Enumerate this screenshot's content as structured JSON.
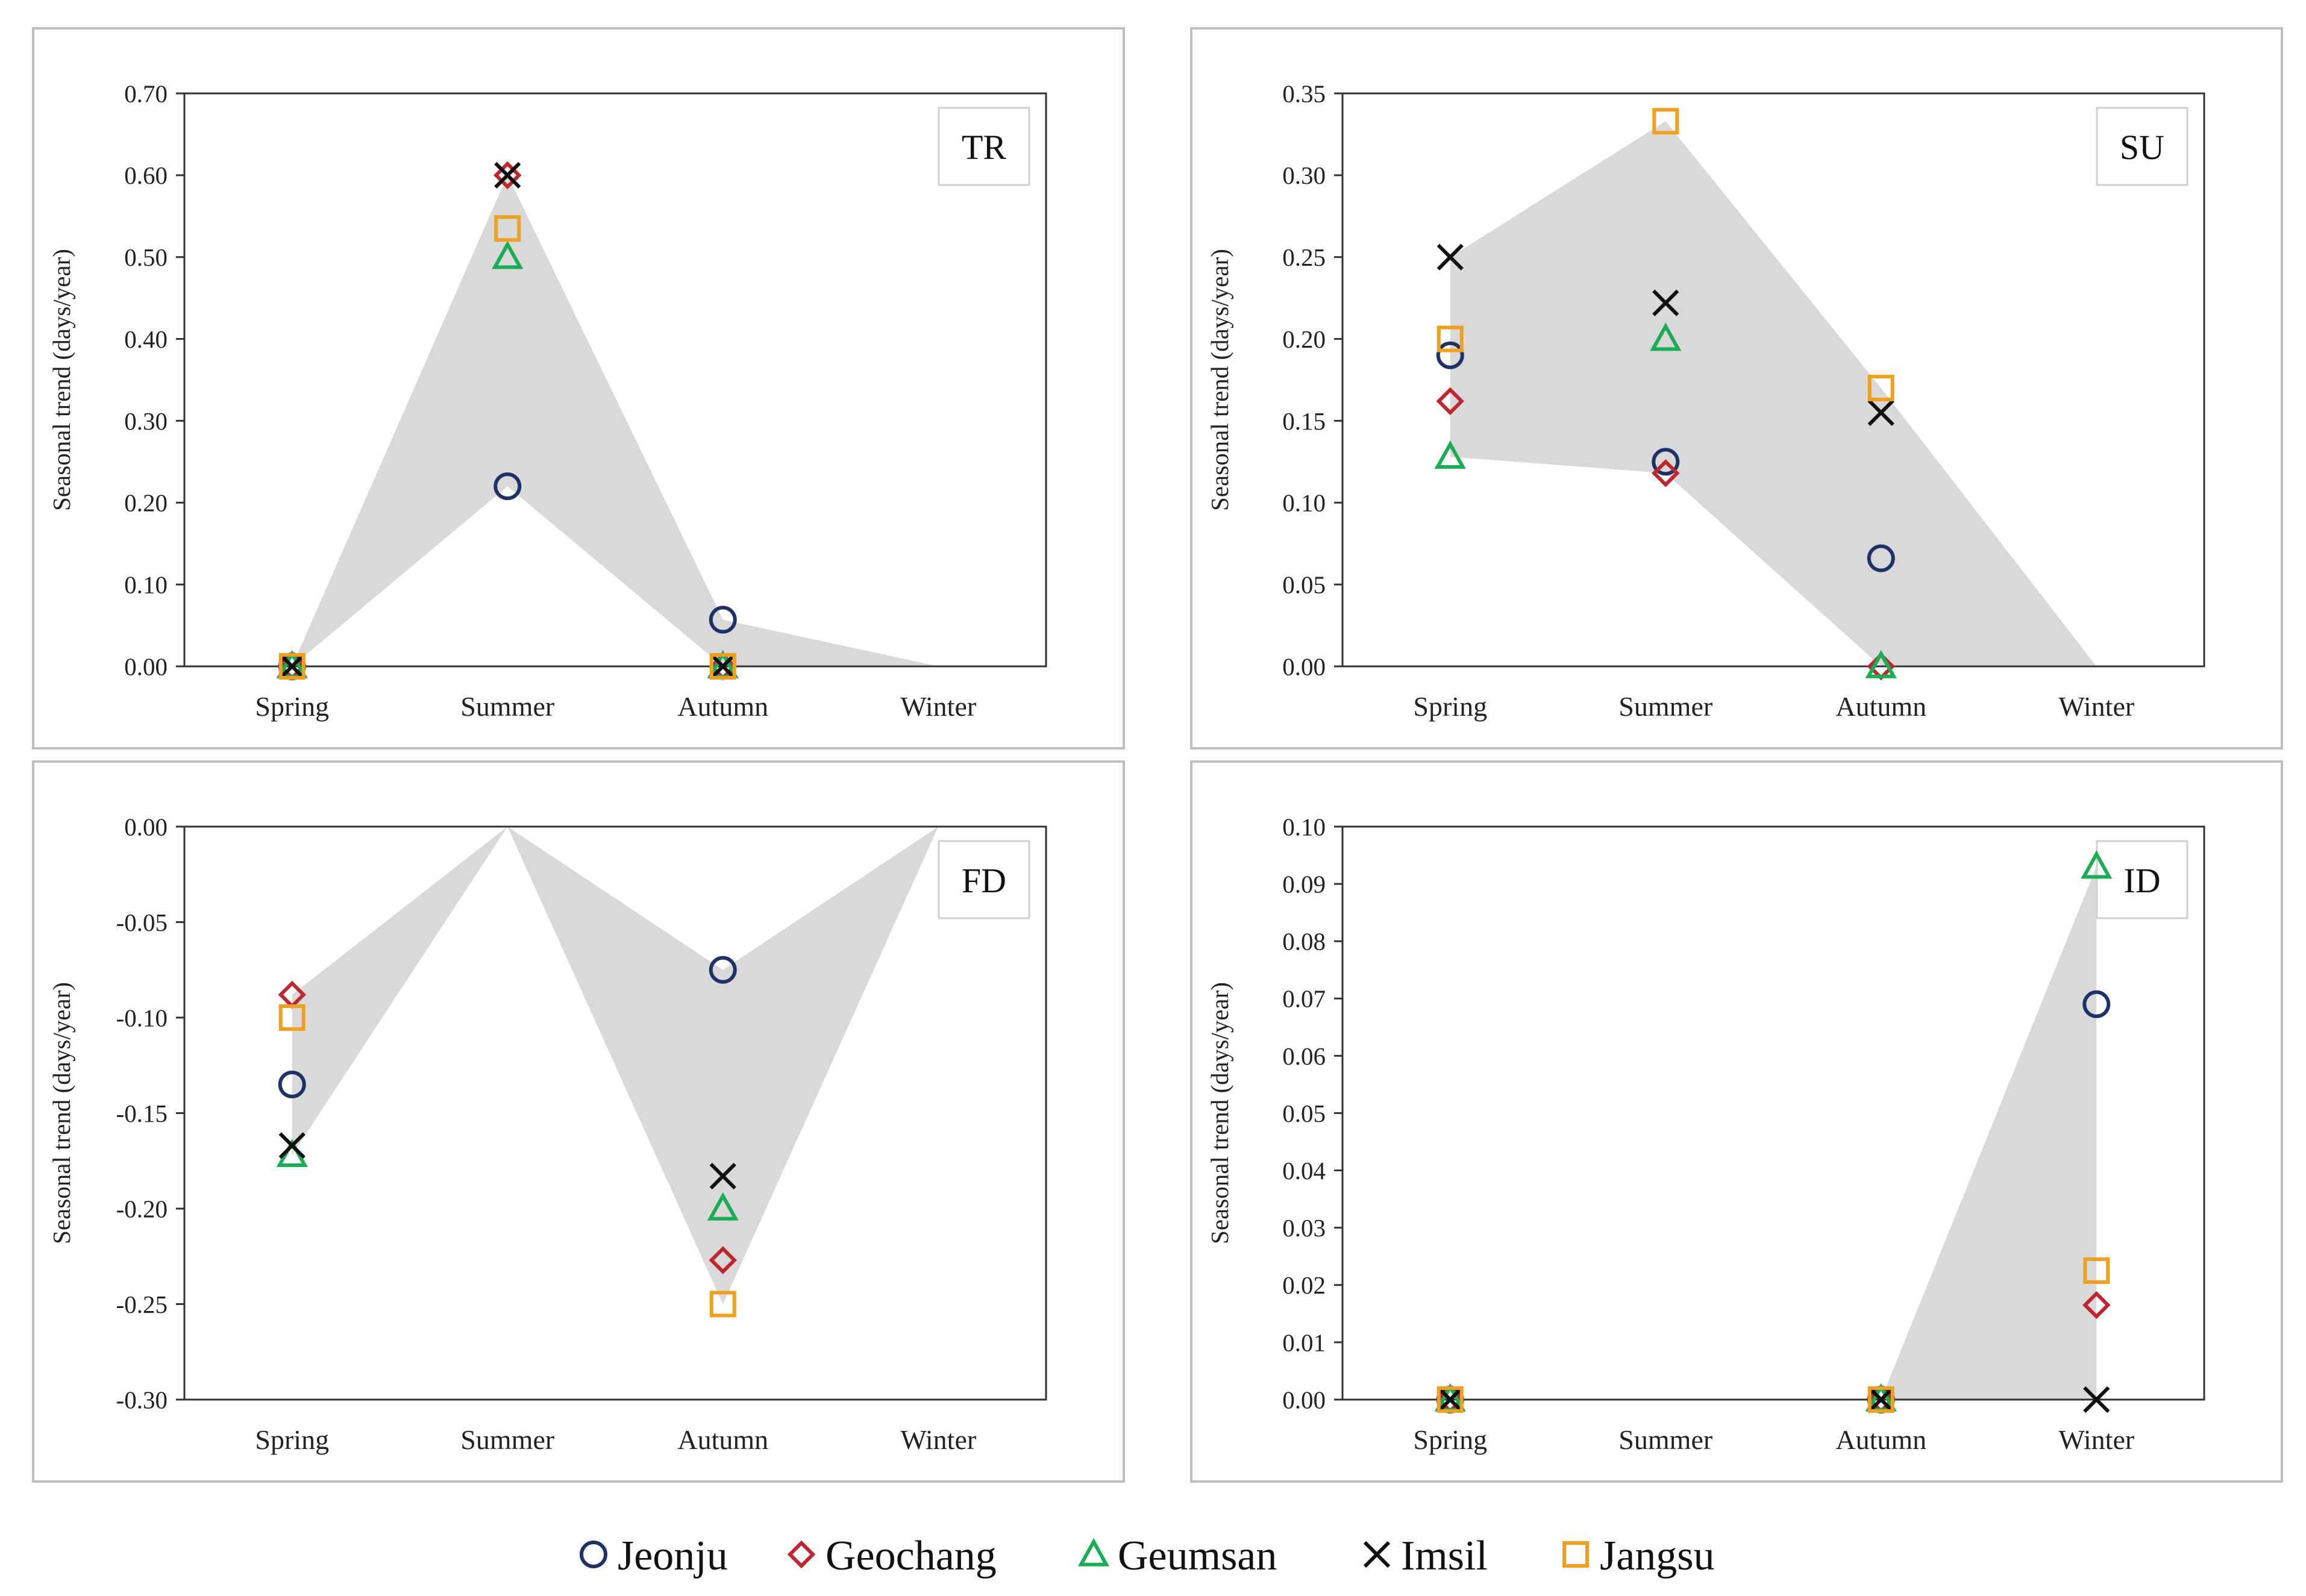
{
  "figure": {
    "series": [
      {
        "name": "Jeonju",
        "marker": "circle",
        "color": "#1f3268"
      },
      {
        "name": "Geochang",
        "marker": "diamond",
        "color": "#c0262d"
      },
      {
        "name": "Geumsan",
        "marker": "triangle",
        "color": "#1aad55"
      },
      {
        "name": "Imsil",
        "marker": "cross",
        "color": "#111111"
      },
      {
        "name": "Jangsu",
        "marker": "square",
        "color": "#f0a020"
      }
    ],
    "band_color": "#d9d9d9"
  },
  "chart_data": [
    {
      "type": "scatter",
      "label": "TR",
      "ylabel": "Seasonal trend (days/year)",
      "categories": [
        "Spring",
        "Summer",
        "Autumn",
        "Winter"
      ],
      "ylim": [
        0,
        0.7
      ],
      "yticks": [
        "0.00",
        "0.10",
        "0.20",
        "0.30",
        "0.40",
        "0.50",
        "0.60",
        "0.70"
      ],
      "values": {
        "Jeonju": [
          0,
          0.22,
          0.057,
          null
        ],
        "Geochang": [
          0,
          0.6,
          0,
          null
        ],
        "Geumsan": [
          0,
          0.5,
          0,
          null
        ],
        "Imsil": [
          0,
          0.6,
          0,
          null
        ],
        "Jangsu": [
          0,
          0.535,
          0,
          null
        ]
      },
      "band": {
        "upper": [
          0,
          0.6,
          0.057,
          0
        ],
        "lower": [
          0,
          0.22,
          0,
          0
        ]
      }
    },
    {
      "type": "scatter",
      "label": "SU",
      "ylabel": "Seasonal trend (days/year)",
      "categories": [
        "Spring",
        "Summer",
        "Autumn",
        "Winter"
      ],
      "ylim": [
        0,
        0.35
      ],
      "yticks": [
        "0.00",
        "0.05",
        "0.10",
        "0.15",
        "0.20",
        "0.25",
        "0.30",
        "0.35"
      ],
      "values": {
        "Jeonju": [
          0.19,
          0.125,
          0.066,
          null
        ],
        "Geochang": [
          0.162,
          0.118,
          0,
          null
        ],
        "Geumsan": [
          0.128,
          0.2,
          0,
          null
        ],
        "Imsil": [
          0.25,
          0.222,
          0.155,
          null
        ],
        "Jangsu": [
          0.2,
          0.333,
          0.17,
          null
        ]
      },
      "band": {
        "upper": [
          0.25,
          0.333,
          0.17,
          0
        ],
        "lower": [
          0.128,
          0.118,
          0,
          0
        ]
      }
    },
    {
      "type": "scatter",
      "label": "FD",
      "ylabel": "Seasonal trend (days/year)",
      "categories": [
        "Spring",
        "Summer",
        "Autumn",
        "Winter"
      ],
      "ylim": [
        -0.3,
        0
      ],
      "yticks": [
        "-0.30",
        "-0.25",
        "-0.20",
        "-0.15",
        "-0.10",
        "-0.05",
        "0.00"
      ],
      "values": {
        "Jeonju": [
          -0.135,
          null,
          -0.075,
          null
        ],
        "Geochang": [
          -0.088,
          null,
          -0.227,
          null
        ],
        "Geumsan": [
          -0.172,
          null,
          -0.2,
          null
        ],
        "Imsil": [
          -0.167,
          null,
          -0.183,
          null
        ],
        "Jangsu": [
          -0.1,
          null,
          -0.25,
          null
        ]
      },
      "band": {
        "upper": [
          -0.088,
          0,
          -0.075,
          0
        ],
        "lower": [
          -0.172,
          0,
          -0.25,
          0
        ]
      }
    },
    {
      "type": "scatter",
      "label": "ID",
      "ylabel": "Seasonal trend (days/year)",
      "categories": [
        "Spring",
        "Summer",
        "Autumn",
        "Winter"
      ],
      "ylim": [
        0,
        0.1
      ],
      "yticks": [
        "0.00",
        "0.01",
        "0.02",
        "0.03",
        "0.04",
        "0.05",
        "0.06",
        "0.07",
        "0.08",
        "0.09",
        "0.10"
      ],
      "values": {
        "Jeonju": [
          0,
          null,
          0,
          0.069
        ],
        "Geochang": [
          0,
          null,
          0,
          0.0165
        ],
        "Geumsan": [
          0,
          null,
          0,
          0.093
        ],
        "Imsil": [
          0,
          null,
          0,
          0
        ],
        "Jangsu": [
          0,
          null,
          0,
          0.0225
        ]
      },
      "band": {
        "upper": [
          null,
          null,
          0,
          0.093
        ],
        "lower": [
          null,
          null,
          0,
          0
        ]
      }
    }
  ]
}
